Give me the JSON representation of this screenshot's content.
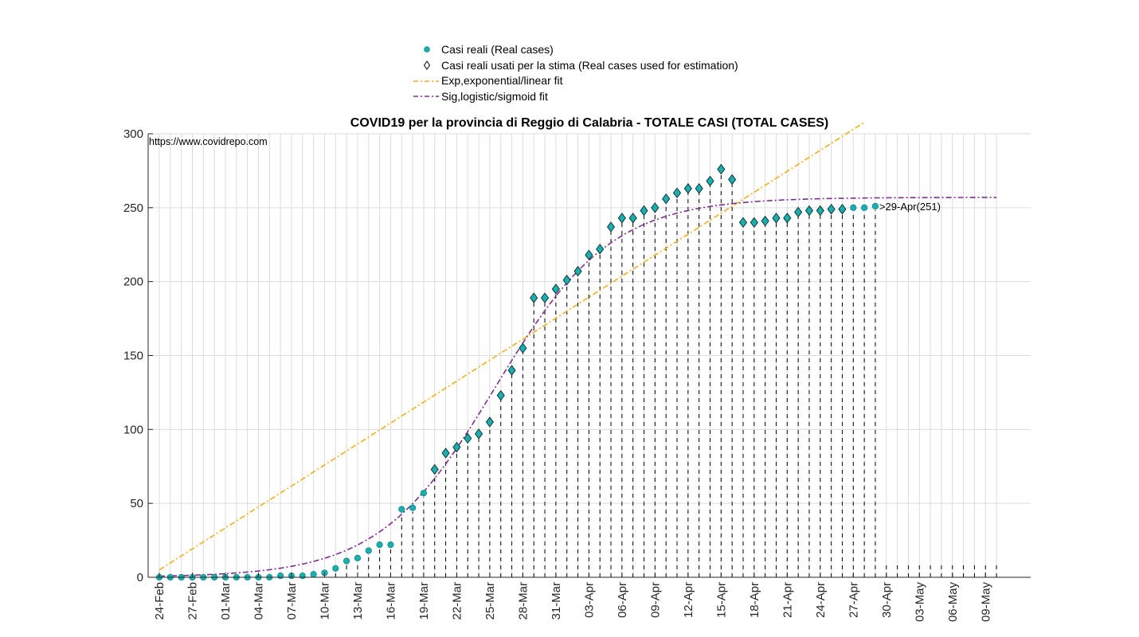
{
  "chart_data": {
    "type": "scatter",
    "title": "COVID19 per la provincia di Reggio di Calabria - TOTALE CASI (TOTAL CASES)",
    "source_note": "https://www.covidrepo.com",
    "xlabel": "",
    "ylabel": "",
    "ylim": [
      0,
      300
    ],
    "yticks": [
      0,
      50,
      100,
      150,
      200,
      250,
      300
    ],
    "x_start_date": "24-Feb",
    "x_range_days": [
      0,
      76
    ],
    "xtick_labels": [
      "24-Feb",
      "27-Feb",
      "01-Mar",
      "04-Mar",
      "07-Mar",
      "10-Mar",
      "13-Mar",
      "16-Mar",
      "19-Mar",
      "22-Mar",
      "25-Mar",
      "28-Mar",
      "31-Mar",
      "03-Apr",
      "06-Apr",
      "09-Apr",
      "12-Apr",
      "15-Apr",
      "18-Apr",
      "21-Apr",
      "24-Apr",
      "27-Apr",
      "30-Apr",
      "03-May",
      "06-May",
      "09-May"
    ],
    "grid": true,
    "legend_position": "top",
    "legend": [
      {
        "label": "Casi reali (Real cases)",
        "kind": "marker-circle"
      },
      {
        "label": "Casi reali usati per la stima (Real cases used for estimation)",
        "kind": "marker-diamond"
      },
      {
        "label": "Exp,exponential/linear fit",
        "kind": "line",
        "color": "#EDB120"
      },
      {
        "label": "Sig,logistic/sigmoid fit",
        "kind": "line",
        "color": "#7E2F8E"
      }
    ],
    "series": [
      {
        "name": "Casi reali (Real cases)",
        "values": [
          0,
          0,
          0,
          0,
          0,
          0,
          0,
          0,
          0,
          0,
          0,
          1,
          1,
          1,
          2,
          3,
          6,
          11,
          13,
          18,
          22,
          22,
          46,
          47,
          57,
          73,
          84,
          88,
          94,
          97,
          105,
          123,
          140,
          155,
          189,
          189,
          195,
          201,
          207,
          218,
          222,
          237,
          243,
          243,
          248,
          250,
          256,
          260,
          263,
          263,
          268,
          276,
          269,
          240,
          240,
          241,
          243,
          243,
          247,
          248,
          248,
          249,
          249,
          250,
          250,
          251
        ],
        "color": "#1AAEAE"
      },
      {
        "name": "Casi reali usati per la stima (Real cases used for estimation)",
        "x_start_index": 25,
        "values": [
          73,
          84,
          88,
          94,
          97,
          105,
          123,
          140,
          155,
          189,
          189,
          195,
          201,
          207,
          218,
          222,
          237,
          243,
          243,
          248,
          250,
          256,
          260,
          263,
          263,
          268,
          276,
          269,
          240,
          240,
          241,
          243,
          243,
          247,
          248,
          248,
          249,
          249
        ]
      },
      {
        "name": "Exp,exponential/linear fit",
        "model": "linear",
        "intercept": 5,
        "slope": 4.73,
        "x_range_days": [
          0,
          64
        ],
        "color": "#EDB120"
      },
      {
        "name": "Sig,logistic/sigmoid fit",
        "model": "logistic",
        "K": 257,
        "r": 0.19,
        "x0": 30.5,
        "x_range_days": [
          0,
          76
        ],
        "color": "#7E2F8E"
      }
    ],
    "annotations": [
      {
        "text": ">29-Apr(251)",
        "x_day": 65,
        "y": 251
      }
    ],
    "colors": {
      "marker": "#1AAEAE",
      "exp_fit": "#EDB120",
      "sig_fit": "#7E2F8E",
      "grid": "#DCDCDC",
      "axis": "#262626"
    }
  }
}
